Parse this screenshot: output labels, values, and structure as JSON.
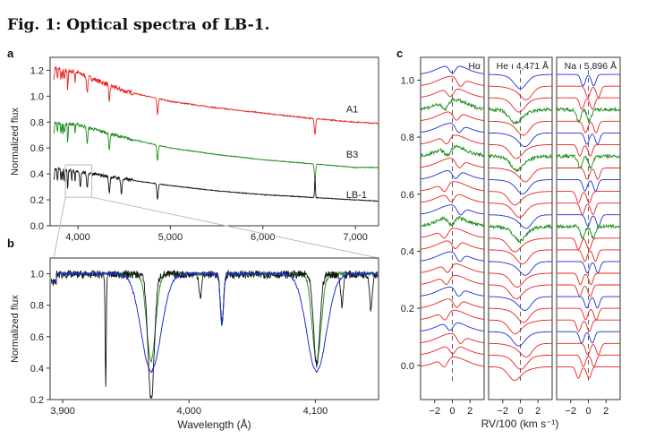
{
  "figure": {
    "title": "Fig. 1: Optical spectra of LB-1.",
    "panels": {
      "a": "a",
      "b": "b",
      "c": "c"
    }
  },
  "colors": {
    "red": "#e8231e",
    "green": "#1c8c1c",
    "black": "#111111",
    "blue": "#1f2fd0",
    "guide": "#bbbbbb"
  },
  "chart_data": [
    {
      "panel": "a",
      "type": "line",
      "ylabel": "Normalized flux",
      "xlim": [
        3700,
        7250
      ],
      "ylim": [
        0.0,
        1.3
      ],
      "xticks": [
        4000,
        5000,
        6000,
        7000
      ],
      "xtick_labels": [
        "4,000",
        "5,000",
        "6,000",
        "7,000"
      ],
      "yticks": [
        0.0,
        0.2,
        0.4,
        0.6,
        0.8,
        1.0,
        1.2
      ],
      "ytick_labels": [
        "0.0",
        "0.2",
        "0.4",
        "0.6",
        "0.8",
        "1.0",
        "1.2"
      ],
      "series": [
        {
          "name": "A1",
          "color": "#e8231e",
          "x": [
            3750,
            4000,
            4500,
            5000,
            5500,
            6000,
            6500,
            7000,
            7250
          ],
          "y": [
            1.22,
            1.18,
            1.04,
            0.96,
            0.91,
            0.87,
            0.83,
            0.8,
            0.79
          ],
          "absorption_lines": [
            3835,
            3889,
            3970,
            4101,
            4340,
            4861,
            6563
          ]
        },
        {
          "name": "B3",
          "color": "#1c8c1c",
          "x": [
            3750,
            4000,
            4500,
            5000,
            5500,
            6000,
            6500,
            7000,
            7250
          ],
          "y": [
            0.8,
            0.78,
            0.68,
            0.6,
            0.55,
            0.51,
            0.48,
            0.45,
            0.45
          ],
          "absorption_lines": [
            3835,
            3889,
            3970,
            4101,
            4340,
            4861,
            6563
          ]
        },
        {
          "name": "LB-1",
          "color": "#111111",
          "x": [
            3750,
            4000,
            4500,
            5000,
            5500,
            6000,
            6500,
            7000,
            7250
          ],
          "y": [
            0.44,
            0.42,
            0.36,
            0.31,
            0.27,
            0.24,
            0.22,
            0.2,
            0.19
          ],
          "absorption_lines": [
            3835,
            3889,
            3934,
            3970,
            4026,
            4101,
            4340,
            4471,
            4861
          ],
          "emission_line": {
            "x": 6563,
            "peak": 0.38
          }
        }
      ]
    },
    {
      "panel": "b",
      "type": "line",
      "xlabel": "Wavelength (Å)",
      "ylabel": "Normalized flux",
      "xlim": [
        3890,
        4150
      ],
      "ylim": [
        0.2,
        1.1
      ],
      "xticks": [
        3900,
        4000,
        4100
      ],
      "xtick_labels": [
        "3,900",
        "4,000",
        "4,100"
      ],
      "yticks": [
        0.2,
        0.4,
        0.6,
        0.8,
        1.0
      ],
      "ytick_labels": [
        "0.2",
        "0.4",
        "0.6",
        "0.8",
        "1.0"
      ],
      "lines": [
        {
          "center": 3970,
          "depth_black": 0.8,
          "depth_blue": 0.62,
          "depth_green": 0.55
        },
        {
          "center": 4101,
          "depth_black": 0.58,
          "depth_blue": 0.62,
          "depth_green": 0.55
        },
        {
          "center": 3934,
          "depth_black": 0.72
        },
        {
          "center": 4026,
          "depth_black": 0.3,
          "depth_blue": 0.32,
          "depth_green": 0.33
        },
        {
          "center": 4009,
          "depth_black": 0.14
        },
        {
          "center": 4121,
          "depth_black": 0.2
        },
        {
          "center": 4144,
          "depth_black": 0.22
        }
      ]
    },
    {
      "panel": "c",
      "type": "line",
      "xlabel": "RV/100 (km s⁻¹)",
      "ylim": [
        -0.12,
        1.08
      ],
      "yticks": [
        0.0,
        0.2,
        0.4,
        0.6,
        0.8,
        1.0
      ],
      "ytick_labels": [
        "0.0",
        "0.2",
        "0.4",
        "0.6",
        "0.8",
        "1.0"
      ],
      "xticks": [
        -2,
        0,
        2
      ],
      "xtick_labels": [
        "−2",
        "0",
        "2"
      ],
      "subpanels": [
        {
          "label": "Hα",
          "xlim": [
            -3.6,
            3.6
          ]
        },
        {
          "label": "He ı 4,471 Å",
          "xlim": [
            -3.6,
            3.6
          ]
        },
        {
          "label": "Na ı 5,896 Å",
          "xlim": [
            -3.6,
            3.6
          ]
        }
      ]
    }
  ]
}
